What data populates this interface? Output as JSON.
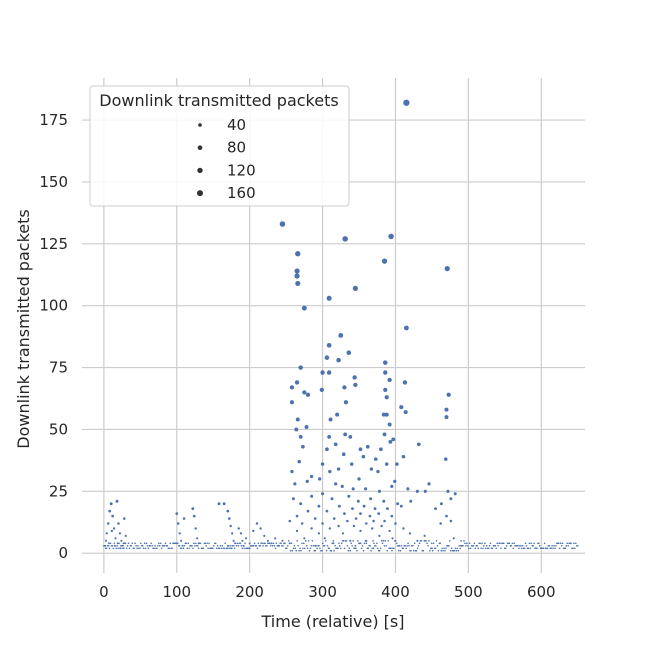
{
  "chart_data": {
    "type": "scatter",
    "title": "",
    "xlabel": "Time (relative) [s]",
    "ylabel": "Downlink transmitted packets",
    "xlim": [
      -30,
      660
    ],
    "ylim": [
      -8,
      192
    ],
    "xticks": [
      0,
      100,
      200,
      300,
      400,
      500,
      600
    ],
    "yticks": [
      0,
      25,
      50,
      75,
      100,
      125,
      150,
      175
    ],
    "grid": true,
    "color": "#4c72b0",
    "size_by": "y",
    "legend": {
      "title": "Downlink transmitted packets",
      "placement": "top-left",
      "entries": [
        "40",
        "80",
        "120",
        "160"
      ],
      "entry_values": [
        40,
        80,
        120,
        160
      ]
    },
    "points": [
      [
        415,
        182
      ],
      [
        245,
        133
      ],
      [
        266,
        121
      ],
      [
        265,
        114
      ],
      [
        265,
        112
      ],
      [
        266,
        109
      ],
      [
        275,
        99
      ],
      [
        331,
        127
      ],
      [
        394,
        128
      ],
      [
        471,
        115
      ],
      [
        385,
        118
      ],
      [
        415,
        91
      ],
      [
        309,
        103
      ],
      [
        345,
        107
      ],
      [
        325,
        88
      ],
      [
        309,
        84
      ],
      [
        336,
        81
      ],
      [
        306,
        79
      ],
      [
        322,
        78
      ],
      [
        386,
        77
      ],
      [
        270,
        75
      ],
      [
        300,
        73
      ],
      [
        309,
        73
      ],
      [
        344,
        71
      ],
      [
        386,
        73
      ],
      [
        392,
        70
      ],
      [
        413,
        69
      ],
      [
        265,
        69
      ],
      [
        345,
        68
      ],
      [
        330,
        67
      ],
      [
        258,
        67
      ],
      [
        275,
        65
      ],
      [
        280,
        64
      ],
      [
        299,
        66
      ],
      [
        386,
        66
      ],
      [
        473,
        64
      ],
      [
        332,
        61
      ],
      [
        258,
        61
      ],
      [
        388,
        63
      ],
      [
        408,
        59
      ],
      [
        414,
        57
      ],
      [
        470,
        58
      ],
      [
        320,
        56
      ],
      [
        384,
        56
      ],
      [
        388,
        56
      ],
      [
        470,
        55
      ],
      [
        266,
        54
      ],
      [
        311,
        54
      ],
      [
        392,
        52
      ],
      [
        264,
        50
      ],
      [
        278,
        51
      ],
      [
        331,
        48
      ],
      [
        338,
        47
      ],
      [
        309,
        47
      ],
      [
        385,
        48
      ],
      [
        397,
        46
      ],
      [
        270,
        47
      ],
      [
        318,
        44
      ],
      [
        432,
        44
      ],
      [
        306,
        42
      ],
      [
        352,
        42
      ],
      [
        362,
        43
      ],
      [
        380,
        42
      ],
      [
        393,
        45
      ],
      [
        411,
        39
      ],
      [
        273,
        43
      ],
      [
        329,
        40
      ],
      [
        356,
        39
      ],
      [
        373,
        38
      ],
      [
        388,
        36
      ],
      [
        469,
        38
      ],
      [
        268,
        37
      ],
      [
        300,
        36
      ],
      [
        340,
        36
      ],
      [
        402,
        36
      ],
      [
        310,
        33
      ],
      [
        322,
        34
      ],
      [
        367,
        34
      ],
      [
        376,
        33
      ],
      [
        285,
        31
      ],
      [
        258,
        33
      ],
      [
        296,
        30
      ],
      [
        350,
        30
      ],
      [
        399,
        29
      ],
      [
        446,
        28
      ],
      [
        262,
        28
      ],
      [
        279,
        29
      ],
      [
        318,
        28
      ],
      [
        327,
        27
      ],
      [
        342,
        26
      ],
      [
        359,
        26
      ],
      [
        378,
        25
      ],
      [
        395,
        27
      ],
      [
        417,
        26
      ],
      [
        430,
        25
      ],
      [
        441,
        25
      ],
      [
        472,
        25
      ],
      [
        482,
        24
      ],
      [
        260,
        22
      ],
      [
        285,
        23
      ],
      [
        300,
        24
      ],
      [
        313,
        22
      ],
      [
        336,
        23
      ],
      [
        349,
        21
      ],
      [
        366,
        22
      ],
      [
        384,
        21
      ],
      [
        403,
        20
      ],
      [
        421,
        21
      ],
      [
        463,
        20
      ],
      [
        476,
        22
      ],
      [
        270,
        20
      ],
      [
        295,
        19
      ],
      [
        323,
        19
      ],
      [
        341,
        18
      ],
      [
        357,
        19
      ],
      [
        372,
        18
      ],
      [
        389,
        18
      ],
      [
        408,
        19
      ],
      [
        455,
        18
      ],
      [
        280,
        17
      ],
      [
        306,
        17
      ],
      [
        330,
        16
      ],
      [
        352,
        16
      ],
      [
        365,
        15
      ],
      [
        377,
        16
      ],
      [
        395,
        15
      ],
      [
        265,
        15
      ],
      [
        290,
        14
      ],
      [
        316,
        14
      ],
      [
        334,
        13
      ],
      [
        346,
        14
      ],
      [
        370,
        13
      ],
      [
        385,
        13
      ],
      [
        255,
        13
      ],
      [
        272,
        12
      ],
      [
        300,
        12
      ],
      [
        322,
        11
      ],
      [
        343,
        11
      ],
      [
        360,
        12
      ],
      [
        381,
        11
      ],
      [
        400,
        12
      ],
      [
        462,
        12
      ],
      [
        470,
        15
      ],
      [
        476,
        13
      ],
      [
        285,
        10
      ],
      [
        310,
        10
      ],
      [
        352,
        9
      ],
      [
        368,
        10
      ],
      [
        392,
        9
      ],
      [
        411,
        10
      ],
      [
        265,
        9
      ],
      [
        295,
        8
      ],
      [
        328,
        8
      ],
      [
        378,
        7
      ],
      [
        420,
        8
      ],
      [
        440,
        7
      ],
      [
        275,
        6
      ],
      [
        303,
        6
      ],
      [
        338,
        5
      ],
      [
        360,
        5
      ],
      [
        396,
        6
      ],
      [
        430,
        5
      ],
      [
        480,
        6
      ],
      [
        255,
        4
      ],
      [
        290,
        3
      ],
      [
        315,
        4
      ],
      [
        345,
        3
      ],
      [
        370,
        2
      ],
      [
        405,
        3
      ],
      [
        450,
        2
      ],
      [
        490,
        3
      ],
      [
        2,
        3
      ],
      [
        4,
        8
      ],
      [
        6,
        12
      ],
      [
        8,
        17
      ],
      [
        10,
        20
      ],
      [
        12,
        15
      ],
      [
        14,
        10
      ],
      [
        16,
        6
      ],
      [
        18,
        21
      ],
      [
        20,
        12
      ],
      [
        22,
        8
      ],
      [
        24,
        5
      ],
      [
        26,
        3
      ],
      [
        28,
        14
      ],
      [
        30,
        7
      ],
      [
        3,
        5
      ],
      [
        7,
        4
      ],
      [
        11,
        9
      ],
      [
        15,
        3
      ],
      [
        19,
        4
      ],
      [
        23,
        2
      ],
      [
        27,
        4
      ],
      [
        100,
        16
      ],
      [
        102,
        12
      ],
      [
        104,
        8
      ],
      [
        106,
        5
      ],
      [
        108,
        3
      ],
      [
        110,
        14
      ],
      [
        122,
        18
      ],
      [
        124,
        15
      ],
      [
        126,
        10
      ],
      [
        128,
        6
      ],
      [
        130,
        4
      ],
      [
        158,
        20
      ],
      [
        165,
        20
      ],
      [
        170,
        17
      ],
      [
        172,
        14
      ],
      [
        174,
        11
      ],
      [
        176,
        8
      ],
      [
        178,
        5
      ],
      [
        170,
        3
      ],
      [
        175,
        2
      ],
      [
        180,
        4
      ],
      [
        185,
        10
      ],
      [
        188,
        8
      ],
      [
        190,
        5
      ],
      [
        192,
        3
      ],
      [
        195,
        6
      ],
      [
        200,
        4
      ],
      [
        205,
        9
      ],
      [
        210,
        12
      ],
      [
        215,
        10
      ],
      [
        220,
        7
      ],
      [
        225,
        5
      ],
      [
        230,
        4
      ],
      [
        235,
        6
      ],
      [
        240,
        3
      ],
      [
        245,
        5
      ],
      [
        248,
        4
      ]
    ]
  }
}
